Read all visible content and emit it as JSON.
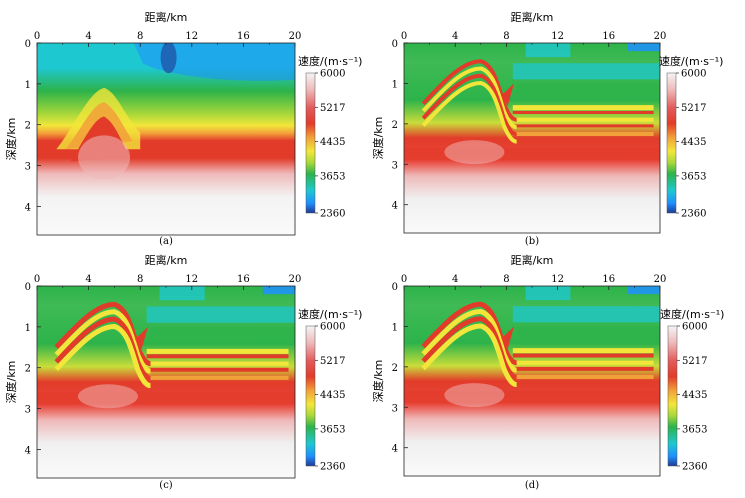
{
  "figure": {
    "panels": [
      {
        "caption": "(a)",
        "kind": "initial"
      },
      {
        "caption": "(b)",
        "kind": "inverted"
      },
      {
        "caption": "(c)",
        "kind": "inverted"
      },
      {
        "caption": "(d)",
        "kind": "inverted"
      }
    ]
  },
  "chart_data": [
    {
      "type": "heatmap",
      "panel": "(a)",
      "xlabel": "距离/km",
      "ylabel": "深度/km",
      "x_ticks": [
        "0",
        "4",
        "8",
        "12",
        "16",
        "20"
      ],
      "y_ticks": [
        "0",
        "1",
        "2",
        "3",
        "4"
      ],
      "xlim": [
        0,
        20
      ],
      "ylim": [
        0,
        4.7
      ],
      "colorbar": {
        "title": "速度/(m·s⁻¹)",
        "ticks": [
          "6000",
          "5217",
          "4435",
          "3653",
          "2360"
        ],
        "range": [
          2360,
          6000
        ],
        "colors": [
          "#1f3a93",
          "#1e90ff",
          "#1ec8d0",
          "#2db34a",
          "#a8d83a",
          "#f2e63a",
          "#f2a03a",
          "#e23b2a",
          "#e35a5a",
          "#efb9b9",
          "#f5f5f5"
        ]
      }
    },
    {
      "type": "heatmap",
      "panel": "(b)",
      "xlabel": "距离/km",
      "ylabel": "深度/km",
      "x_ticks": [
        "0",
        "4",
        "8",
        "12",
        "16",
        "20"
      ],
      "y_ticks": [
        "0",
        "1",
        "2",
        "3",
        "4"
      ],
      "xlim": [
        0,
        20
      ],
      "ylim": [
        0,
        4.7
      ],
      "colorbar": {
        "title": "速度/(m·s⁻¹)",
        "ticks": [
          "6000",
          "5217",
          "4435",
          "3653",
          "2360"
        ],
        "range": [
          2360,
          6000
        ]
      }
    },
    {
      "type": "heatmap",
      "panel": "(c)",
      "xlabel": "距离/km",
      "ylabel": "深度/km",
      "x_ticks": [
        "0",
        "4",
        "8",
        "12",
        "16",
        "20"
      ],
      "y_ticks": [
        "0",
        "1",
        "2",
        "3",
        "4"
      ],
      "xlim": [
        0,
        20
      ],
      "ylim": [
        0,
        4.7
      ],
      "colorbar": {
        "title": "速度/(m·s⁻¹)",
        "ticks": [
          "6000",
          "5217",
          "4435",
          "3653",
          "2360"
        ],
        "range": [
          2360,
          6000
        ]
      }
    },
    {
      "type": "heatmap",
      "panel": "(d)",
      "xlabel": "距离/km",
      "ylabel": "深度/km",
      "x_ticks": [
        "0",
        "4",
        "8",
        "12",
        "16",
        "20"
      ],
      "y_ticks": [
        "0",
        "1",
        "2",
        "3",
        "4"
      ],
      "xlim": [
        0,
        20
      ],
      "ylim": [
        0,
        4.7
      ],
      "colorbar": {
        "title": "速度/(m·s⁻¹)",
        "ticks": [
          "6000",
          "5217",
          "4435",
          "3653",
          "2360"
        ],
        "range": [
          2360,
          6000
        ]
      }
    }
  ]
}
